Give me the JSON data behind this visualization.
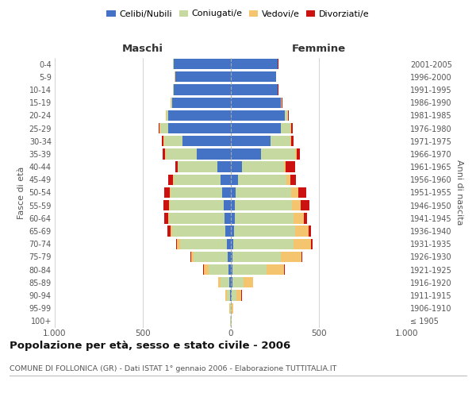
{
  "age_groups": [
    "100+",
    "95-99",
    "90-94",
    "85-89",
    "80-84",
    "75-79",
    "70-74",
    "65-69",
    "60-64",
    "55-59",
    "50-54",
    "45-49",
    "40-44",
    "35-39",
    "30-34",
    "25-29",
    "20-24",
    "15-19",
    "10-14",
    "5-9",
    "0-4"
  ],
  "birth_years": [
    "≤ 1905",
    "1906-1910",
    "1911-1915",
    "1916-1920",
    "1921-1925",
    "1926-1930",
    "1931-1935",
    "1936-1940",
    "1941-1945",
    "1946-1950",
    "1951-1955",
    "1956-1960",
    "1961-1965",
    "1966-1970",
    "1971-1975",
    "1976-1980",
    "1981-1985",
    "1986-1990",
    "1991-1995",
    "1996-2000",
    "2001-2005"
  ],
  "male_celibi": [
    2,
    2,
    5,
    8,
    12,
    18,
    22,
    30,
    35,
    40,
    48,
    58,
    75,
    195,
    275,
    355,
    355,
    335,
    325,
    315,
    325
  ],
  "male_coniugati": [
    1,
    4,
    18,
    50,
    115,
    195,
    265,
    305,
    315,
    305,
    295,
    265,
    225,
    175,
    105,
    45,
    12,
    4,
    2,
    2,
    2
  ],
  "male_vedovi": [
    1,
    4,
    8,
    14,
    28,
    14,
    18,
    8,
    7,
    7,
    4,
    4,
    4,
    4,
    4,
    4,
    2,
    2,
    1,
    1,
    1
  ],
  "male_divorziati": [
    0,
    0,
    1,
    1,
    2,
    4,
    8,
    18,
    22,
    32,
    32,
    28,
    12,
    12,
    8,
    4,
    2,
    1,
    1,
    1,
    1
  ],
  "female_celibi": [
    2,
    2,
    4,
    8,
    8,
    10,
    12,
    18,
    22,
    22,
    28,
    42,
    65,
    170,
    225,
    285,
    305,
    285,
    265,
    255,
    265
  ],
  "female_coniugati": [
    1,
    4,
    28,
    65,
    195,
    275,
    345,
    345,
    335,
    325,
    315,
    275,
    235,
    195,
    115,
    55,
    18,
    4,
    2,
    2,
    2
  ],
  "female_vedovi": [
    2,
    7,
    28,
    52,
    98,
    118,
    98,
    78,
    58,
    48,
    38,
    22,
    12,
    7,
    4,
    4,
    2,
    1,
    1,
    1,
    1
  ],
  "female_divorziati": [
    0,
    0,
    1,
    2,
    4,
    4,
    8,
    12,
    18,
    52,
    48,
    32,
    52,
    22,
    12,
    6,
    2,
    1,
    1,
    1,
    1
  ],
  "colors": {
    "celibi": "#4472c4",
    "coniugati": "#c5d9a0",
    "vedovi": "#f5c46e",
    "divorziati": "#cc1111"
  },
  "title": "Popolazione per età, sesso e stato civile - 2006",
  "subtitle": "COMUNE DI FOLLONICA (GR) - Dati ISTAT 1° gennaio 2006 - Elaborazione TUTTITALIA.IT",
  "xlabel_left": "Maschi",
  "xlabel_right": "Femmine",
  "ylabel_left": "Fasce di età",
  "ylabel_right": "Anni di nascita",
  "xlim": 1000,
  "legend_labels": [
    "Celibi/Nubili",
    "Coniugati/e",
    "Vedovi/e",
    "Divorziati/e"
  ],
  "background_color": "#ffffff",
  "xtick_labels": [
    "1.000",
    "500",
    "0",
    "500",
    "1.000"
  ]
}
